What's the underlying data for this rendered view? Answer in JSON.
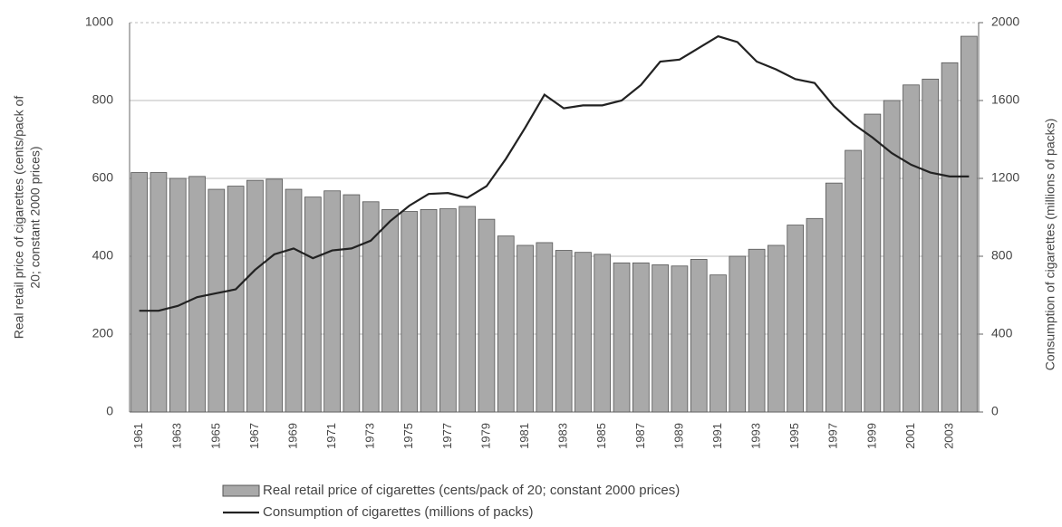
{
  "chart_data": {
    "type": "bar_line",
    "categories": [
      "1961",
      null,
      "1963",
      null,
      "1965",
      null,
      "1967",
      null,
      "1969",
      null,
      "1971",
      null,
      "1973",
      null,
      "1975",
      null,
      "1977",
      null,
      "1979",
      null,
      "1981",
      null,
      "1983",
      null,
      "1985",
      null,
      "1987",
      null,
      "1989",
      null,
      "1991",
      null,
      "1993",
      null,
      "1995",
      null,
      "1997",
      null,
      "1999",
      null,
      "2001",
      null,
      "2003",
      null
    ],
    "series": [
      {
        "name": "Real retail price of cigarettes (cents/pack of 20; constant 2000 prices)",
        "type": "bar",
        "color": "#a9a9a9",
        "values": [
          615,
          615,
          600,
          605,
          572,
          580,
          595,
          598,
          572,
          552,
          568,
          558,
          540,
          520,
          515,
          520,
          522,
          528,
          495,
          452,
          428,
          435,
          415,
          410,
          405,
          383,
          383,
          378,
          375,
          392,
          352,
          400,
          418,
          428,
          480,
          497,
          588,
          672,
          765,
          800,
          840,
          855,
          897,
          965
        ]
      },
      {
        "name": "Consumption of cigarettes (millions of packs)",
        "type": "line",
        "axis": "y2",
        "color": "#222222",
        "values": [
          520,
          520,
          545,
          590,
          610,
          630,
          730,
          810,
          840,
          790,
          830,
          840,
          880,
          980,
          1060,
          1120,
          1125,
          1100,
          1160,
          1300,
          1460,
          1630,
          1560,
          1575,
          1575,
          1600,
          1680,
          1800,
          1810,
          1870,
          1930,
          1900,
          1800,
          1760,
          1710,
          1690,
          1570,
          1480,
          1410,
          1330,
          1270,
          1230,
          1210,
          1210
        ]
      }
    ],
    "ylabel": [
      "Real retail price of cigarettes (cents/pack of",
      "20; constant 2000 prices)"
    ],
    "y2label": "Consumption of cigarettes (millions of packs)",
    "ylim": [
      0,
      1000
    ],
    "yticks": [
      0,
      200,
      400,
      600,
      800,
      1000
    ],
    "y2lim": [
      0,
      2000
    ],
    "y2ticks": [
      0,
      400,
      800,
      1200,
      1600,
      2000
    ],
    "grid": true
  }
}
